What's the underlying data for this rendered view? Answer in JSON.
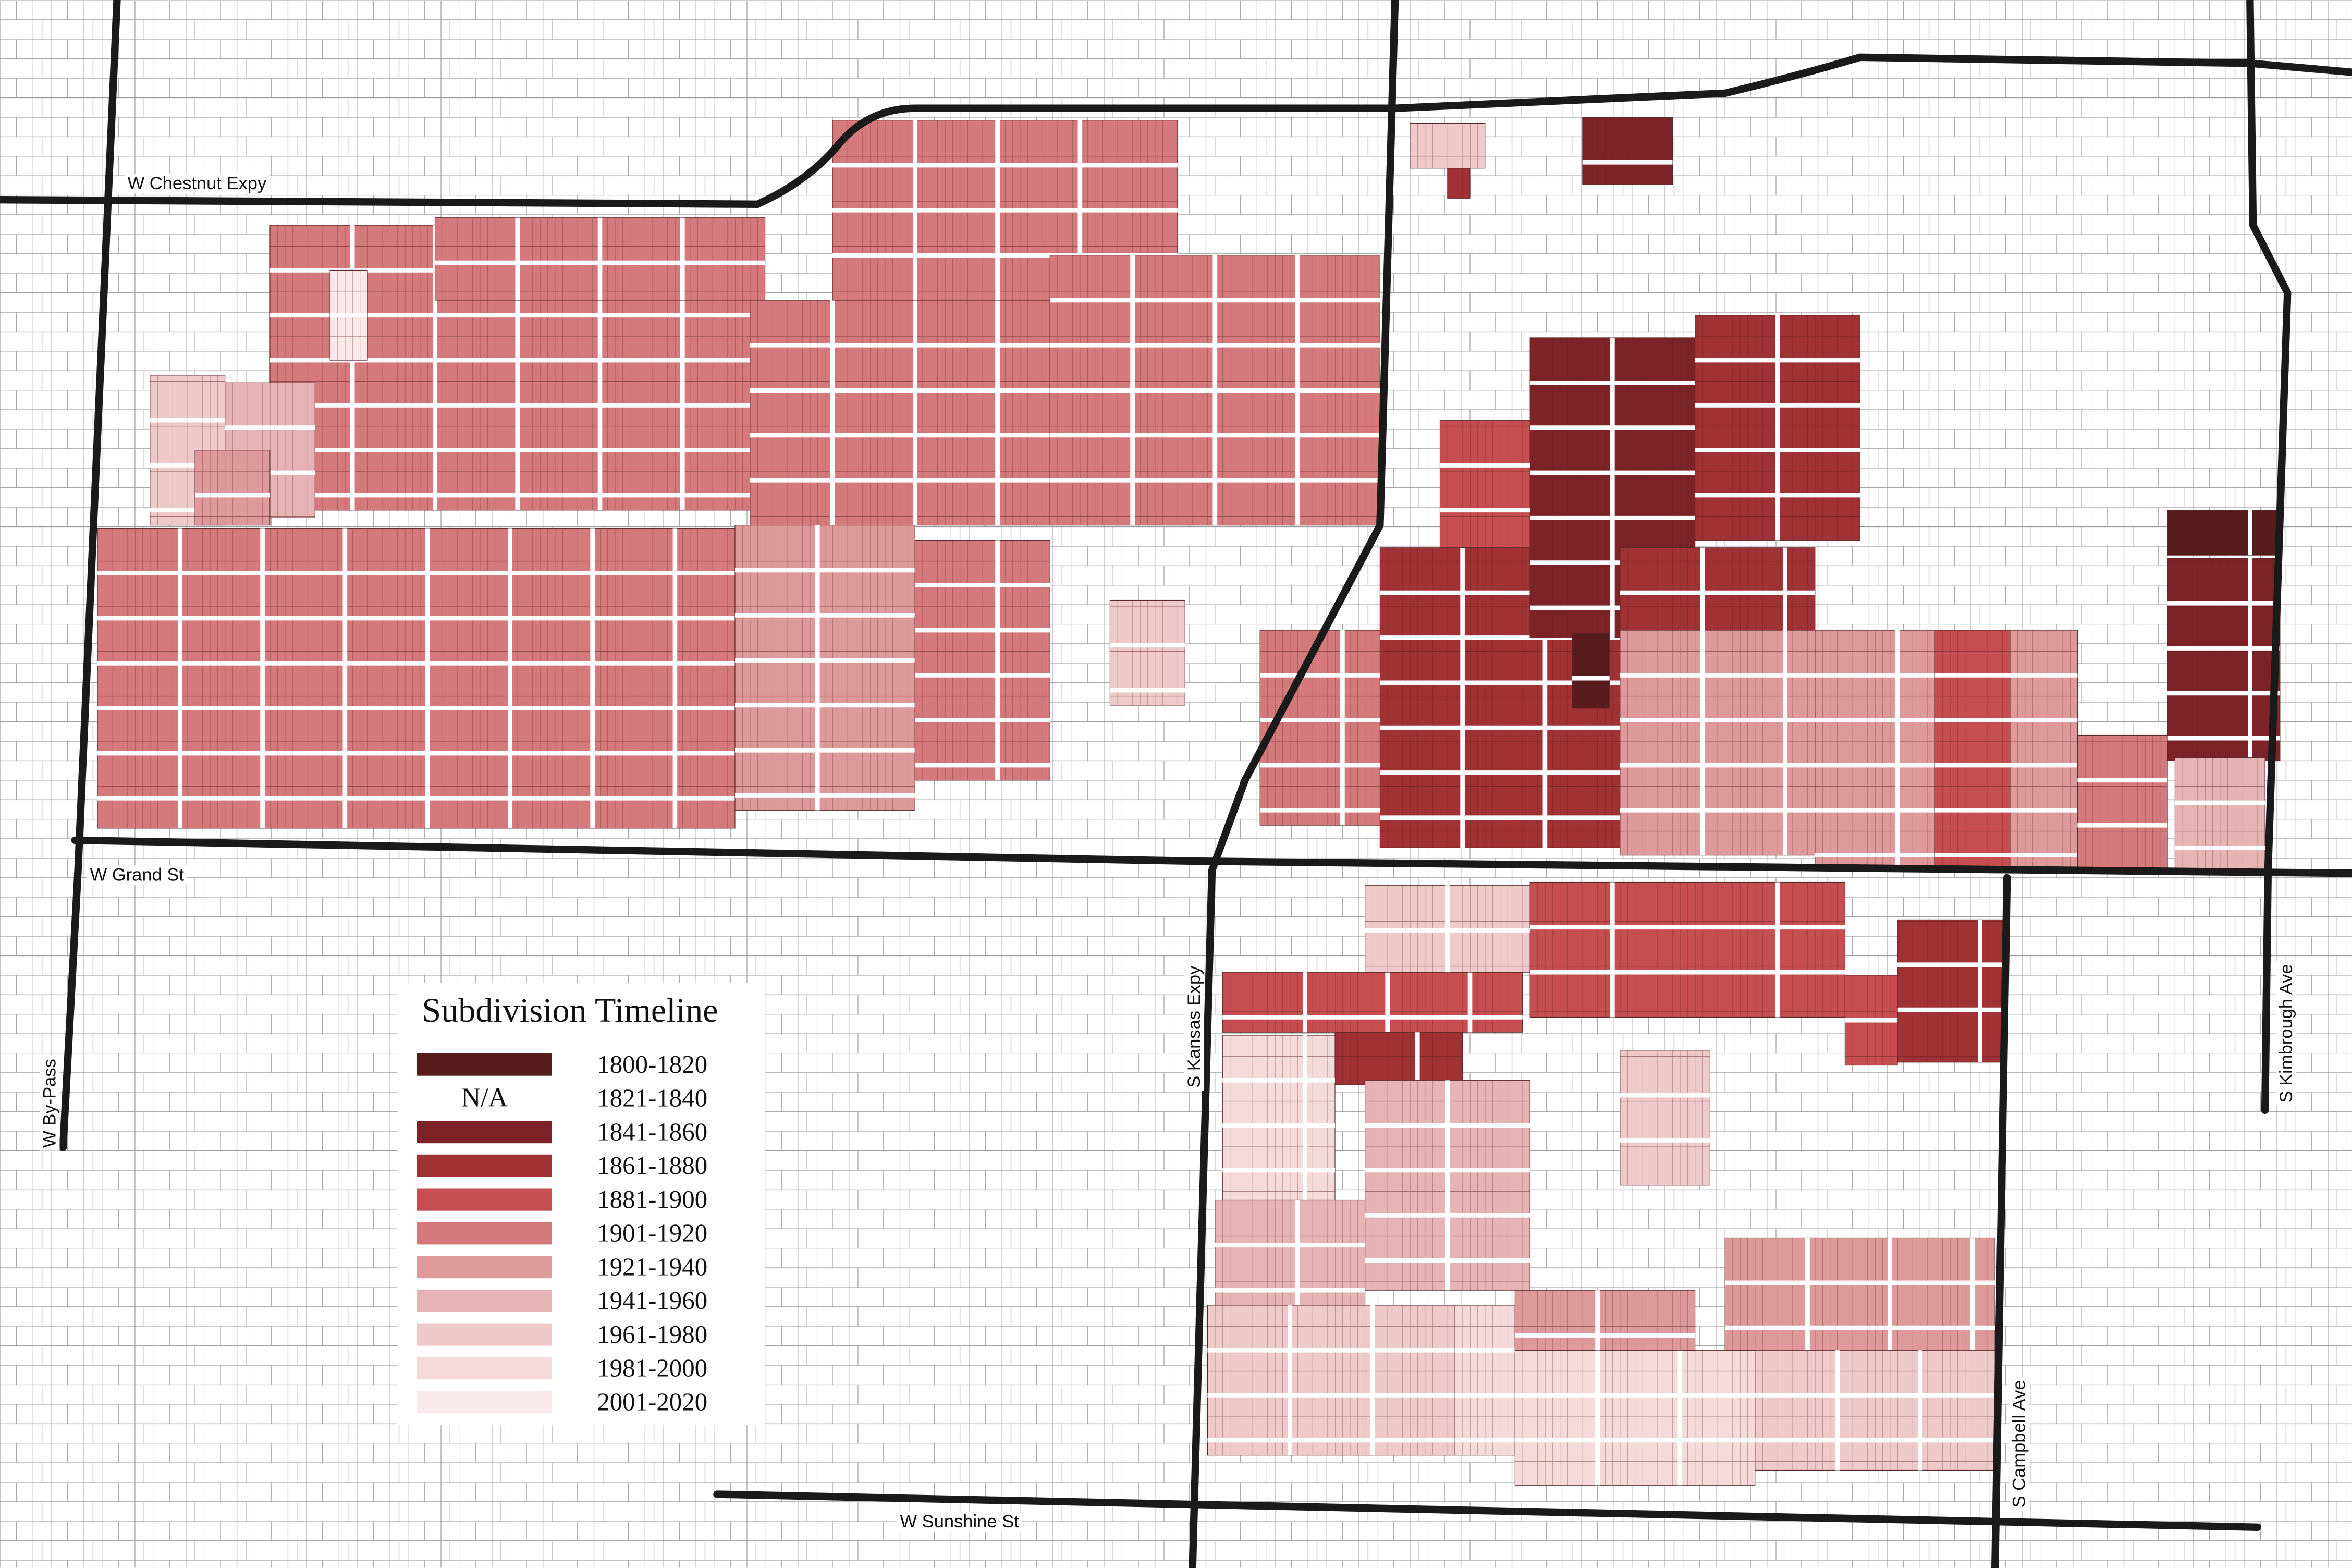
{
  "map": {
    "title": "Subdivision Timeline",
    "legend": [
      {
        "label": "1800-1820",
        "color": "#561b1b"
      },
      {
        "label": "1821-1840",
        "swatch_text": "N/A"
      },
      {
        "label": "1841-1860",
        "color": "#7b2327"
      },
      {
        "label": "1861-1880",
        "color": "#a03135"
      },
      {
        "label": "1881-1900",
        "color": "#c64d50"
      },
      {
        "label": "1901-1920",
        "color": "#d47a7c"
      },
      {
        "label": "1921-1940",
        "color": "#de9a9b"
      },
      {
        "label": "1941-1960",
        "color": "#e7b4b5"
      },
      {
        "label": "1961-1980",
        "color": "#efcacb"
      },
      {
        "label": "1981-2000",
        "color": "#f4dadb"
      },
      {
        "label": "2001-2020",
        "color": "#f9e9ea"
      }
    ],
    "roads": [
      "W Chestnut Expy",
      "W Grand St",
      "W By-Pass",
      "S Kansas Expy",
      "S Kimbrough Ave",
      "S Campbell Ave",
      "W Sunshine St"
    ]
  }
}
